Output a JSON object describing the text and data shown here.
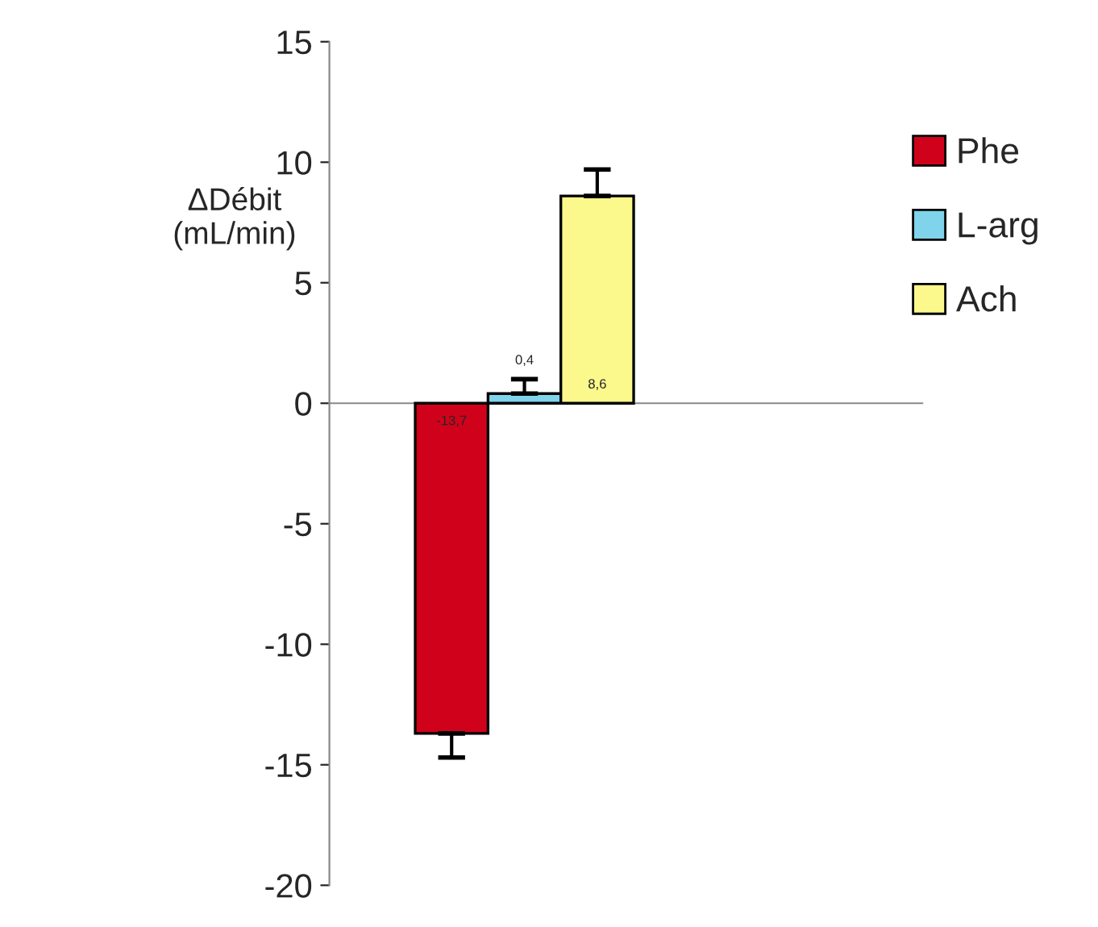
{
  "chart_data": {
    "type": "bar",
    "ylabel": "ΔDébit\n(mL/min)",
    "categories": [
      null
    ],
    "series": [
      {
        "name": "Phe",
        "color": "#d0021b",
        "values": [
          -13.7
        ],
        "errors": [
          1.0
        ],
        "value_labels": [
          "-13,7"
        ]
      },
      {
        "name": "L-arg",
        "color": "#7fd3ea",
        "values": [
          0.4
        ],
        "errors": [
          0.6
        ],
        "value_labels": [
          "0,4"
        ]
      },
      {
        "name": "Ach",
        "color": "#fcf98c",
        "values": [
          8.6
        ],
        "errors": [
          1.1
        ],
        "value_labels": [
          "8,6"
        ]
      }
    ],
    "ylim": [
      -20,
      15
    ],
    "yticks": [
      -20,
      -15,
      -10,
      -5,
      0,
      5,
      10,
      15
    ],
    "legend": "right"
  }
}
